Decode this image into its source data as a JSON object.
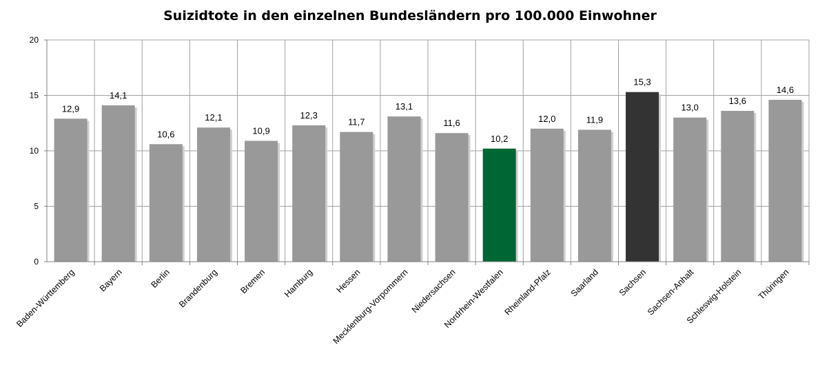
{
  "chart_data": {
    "type": "bar",
    "title": "Suizidtote in den einzelnen Bundesländern pro 100.000 Einwohner",
    "categories": [
      "Baden-Württemberg",
      "Bayern",
      "Berlin",
      "Brandenburg",
      "Bremen",
      "Hamburg",
      "Hessen",
      "Mecklenburg-Vorpommern",
      "Niedersachsen",
      "Nordrhein-Westfalen",
      "Rheinland-Pfalz",
      "Saarland",
      "Sachsen",
      "Sachsen-Anhalt",
      "Schleswig-Holstein",
      "Thüringen"
    ],
    "values": [
      12.9,
      14.1,
      10.6,
      12.1,
      10.9,
      12.3,
      11.7,
      13.1,
      11.6,
      10.2,
      12.0,
      11.9,
      15.3,
      13.0,
      13.6,
      14.6
    ],
    "value_labels": [
      "12,9",
      "14,1",
      "10,6",
      "12,1",
      "10,9",
      "12,3",
      "11,7",
      "13,1",
      "11,6",
      "10,2",
      "12,0",
      "11,9",
      "15,3",
      "13,0",
      "13,6",
      "14,6"
    ],
    "ylim": [
      0,
      20
    ],
    "yticks": [
      0,
      5,
      10,
      15,
      20
    ],
    "grid": true,
    "legend": "none",
    "colors": {
      "default_bar": "#999999",
      "highlight_nrw": "#006633",
      "highlight_sachsen": "#333333",
      "grid": "#a0a0a0",
      "axis": "#808080",
      "bar_shadow": "#cfcfcf"
    },
    "bar_colors": [
      "#999999",
      "#999999",
      "#999999",
      "#999999",
      "#999999",
      "#999999",
      "#999999",
      "#999999",
      "#999999",
      "#006633",
      "#999999",
      "#999999",
      "#333333",
      "#999999",
      "#999999",
      "#999999"
    ]
  }
}
